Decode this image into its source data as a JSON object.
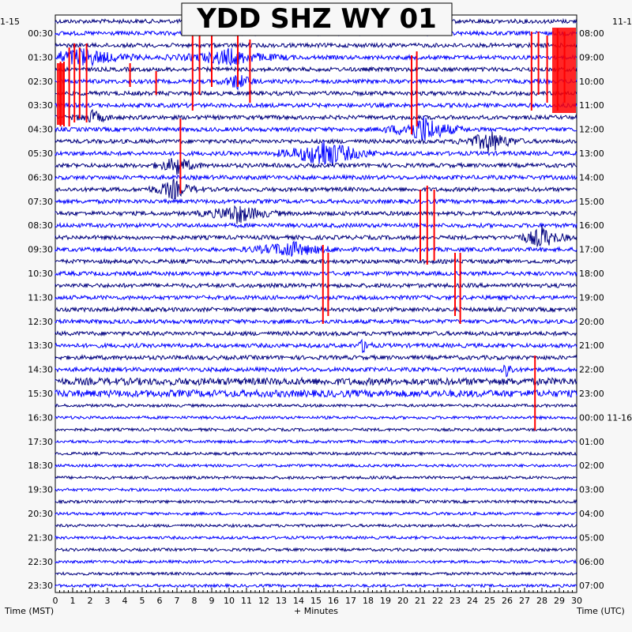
{
  "chart_data": {
    "type": "line",
    "title": "YDD SHZ WY 01",
    "left_corner_label": "1-15",
    "right_corner_label": "11-1",
    "left_axis_label": "Time (MST)",
    "right_axis_label": "Time (UTC)",
    "x_axis_label": "+ Minutes",
    "x_ticks": [
      "0",
      "1",
      "2",
      "3",
      "4",
      "5",
      "6",
      "7",
      "8",
      "9",
      "10",
      "11",
      "12",
      "13",
      "14",
      "15",
      "16",
      "17",
      "18",
      "19",
      "20",
      "21",
      "22",
      "23",
      "24",
      "25",
      "26",
      "27",
      "28",
      "29",
      "30"
    ],
    "left_times": [
      "00:30",
      "01:30",
      "02:30",
      "03:30",
      "04:30",
      "05:30",
      "06:30",
      "07:30",
      "08:30",
      "09:30",
      "10:30",
      "11:30",
      "12:30",
      "13:30",
      "14:30",
      "15:30",
      "16:30",
      "17:30",
      "18:30",
      "19:30",
      "20:30",
      "21:30",
      "22:30",
      "23:30"
    ],
    "right_times": [
      "08:00",
      "09:00",
      "10:00",
      "11:00",
      "12:00",
      "13:00",
      "14:00",
      "15:00",
      "16:00",
      "17:00",
      "18:00",
      "19:00",
      "20:00",
      "21:00",
      "22:00",
      "23:00",
      "00:00 11-16",
      "01:00",
      "02:00",
      "03:00",
      "04:00",
      "05:00",
      "06:00",
      "07:00"
    ],
    "colors": {
      "dark_trace": "#00007f",
      "light_trace": "#0000ff",
      "clipped": "#ff0000"
    },
    "events": [
      {
        "row": 11,
        "minute": 15.5,
        "amp": 20,
        "width": 1.2
      },
      {
        "row": 9,
        "minute": 21.2,
        "amp": 18,
        "width": 1.0
      },
      {
        "row": 10,
        "minute": 25.0,
        "amp": 14,
        "width": 0.8
      },
      {
        "row": 12,
        "minute": 7.0,
        "amp": 12,
        "width": 0.6
      },
      {
        "row": 14,
        "minute": 6.8,
        "amp": 12,
        "width": 0.7
      },
      {
        "row": 16,
        "minute": 10.5,
        "amp": 12,
        "width": 1.0
      },
      {
        "row": 18,
        "minute": 28.0,
        "amp": 14,
        "width": 0.7
      },
      {
        "row": 19,
        "minute": 13.5,
        "amp": 10,
        "width": 1.2
      },
      {
        "row": 5,
        "minute": 10.5,
        "amp": 10,
        "width": 0.5
      },
      {
        "row": 8,
        "minute": 2.2,
        "amp": 8,
        "width": 0.5
      },
      {
        "row": 3,
        "minute": 1.5,
        "amp": 12,
        "width": 1.5
      },
      {
        "row": 3,
        "minute": 10.0,
        "amp": 10,
        "width": 1.5
      },
      {
        "row": 27,
        "minute": 17.8,
        "amp": 12,
        "width": 0.2
      },
      {
        "row": 29,
        "minute": 26.0,
        "amp": 12,
        "width": 0.2
      }
    ]
  }
}
